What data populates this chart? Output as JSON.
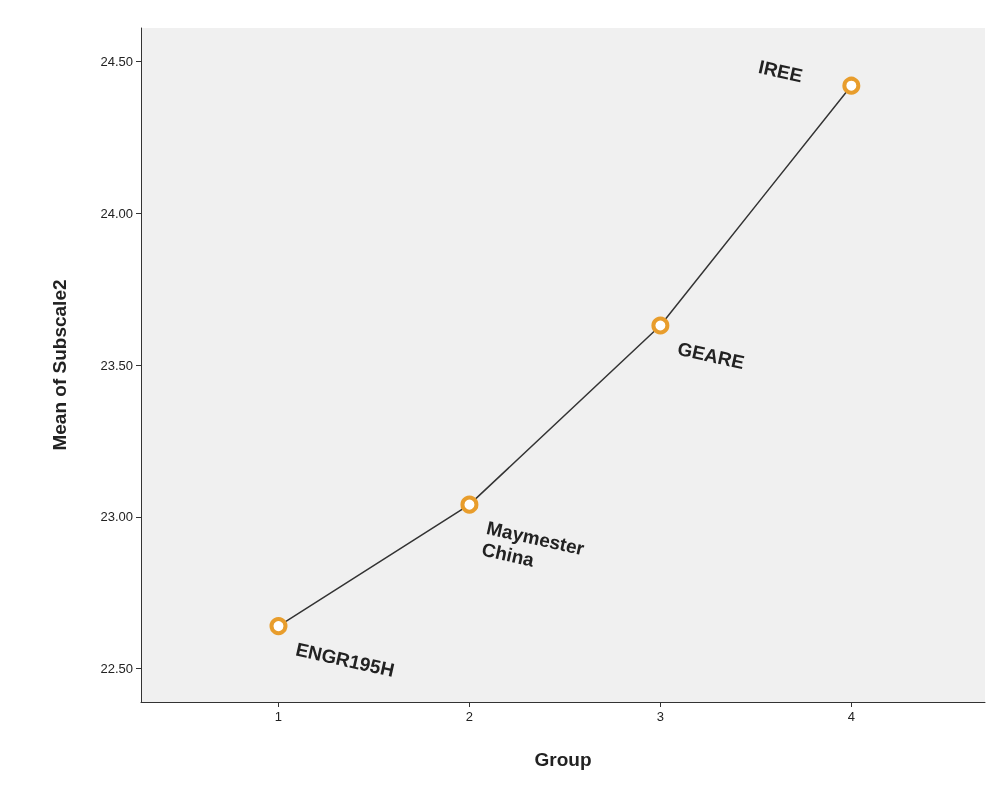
{
  "chart_data": {
    "type": "line",
    "xlabel": "Group",
    "ylabel": "Mean of Subscale2",
    "x": [
      1,
      2,
      3,
      4
    ],
    "series": [
      {
        "color": "#333333",
        "values": [
          22.64,
          23.04,
          23.63,
          24.42
        ]
      }
    ],
    "marker": "circle",
    "line_style": "solid",
    "grid": false,
    "xlim": [
      0.28,
      4.7
    ],
    "xticks": [
      1,
      2,
      3,
      4
    ],
    "ylim": [
      22.39,
      24.61
    ],
    "yticks": [
      {
        "value": 22.5,
        "label": "22.50"
      },
      {
        "value": 23,
        "label": "23.00"
      },
      {
        "value": 23.5,
        "label": "23.50"
      },
      {
        "value": 24,
        "label": "24.00"
      },
      {
        "value": 24.5,
        "label": "24.50"
      }
    ],
    "annotations": [
      {
        "text": "ENGR195H",
        "x": 1,
        "y": 22.64
      },
      {
        "text": "Maymester China",
        "x": 2,
        "y": 23.04
      },
      {
        "text": "GEARE",
        "x": 3,
        "y": 23.63
      },
      {
        "text": "IREE",
        "x": 4,
        "y": 24.42
      }
    ]
  }
}
